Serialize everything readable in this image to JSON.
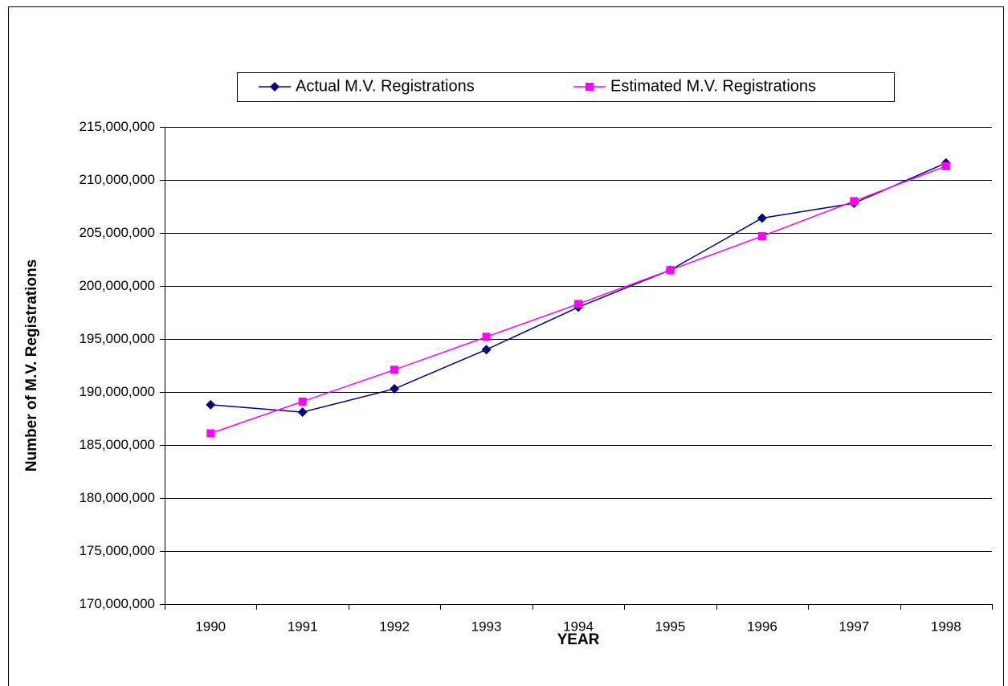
{
  "chart_data": {
    "type": "line",
    "xlabel": "YEAR",
    "ylabel": "Number of M.V. Registrations",
    "categories": [
      "1990",
      "1991",
      "1992",
      "1993",
      "1994",
      "1995",
      "1996",
      "1997",
      "1998"
    ],
    "series": [
      {
        "name": "Actual M.V. Registrations",
        "color": "#000080",
        "marker": "diamond",
        "values": [
          188800000,
          188100000,
          190300000,
          194000000,
          198000000,
          201500000,
          206400000,
          207800000,
          211600000
        ]
      },
      {
        "name": "Estimated M.V. Registrations",
        "color": "#ff00ff",
        "marker": "square",
        "values": [
          186100000,
          189100000,
          192100000,
          195200000,
          198300000,
          201500000,
          204700000,
          208000000,
          211300000
        ]
      }
    ],
    "ylim": [
      170000000,
      215000000
    ],
    "yticks": [
      {
        "value": 170000000,
        "label": "170,000,000"
      },
      {
        "value": 175000000,
        "label": "175,000,000"
      },
      {
        "value": 180000000,
        "label": "180,000,000"
      },
      {
        "value": 185000000,
        "label": "185,000,000"
      },
      {
        "value": 190000000,
        "label": "190,000,000"
      },
      {
        "value": 195000000,
        "label": "195,000,000"
      },
      {
        "value": 200000000,
        "label": "200,000,000"
      },
      {
        "value": 205000000,
        "label": "205,000,000"
      },
      {
        "value": 210000000,
        "label": "210,000,000"
      },
      {
        "value": 215000000,
        "label": "215,000,000"
      }
    ],
    "grid": true,
    "legend": "top"
  }
}
